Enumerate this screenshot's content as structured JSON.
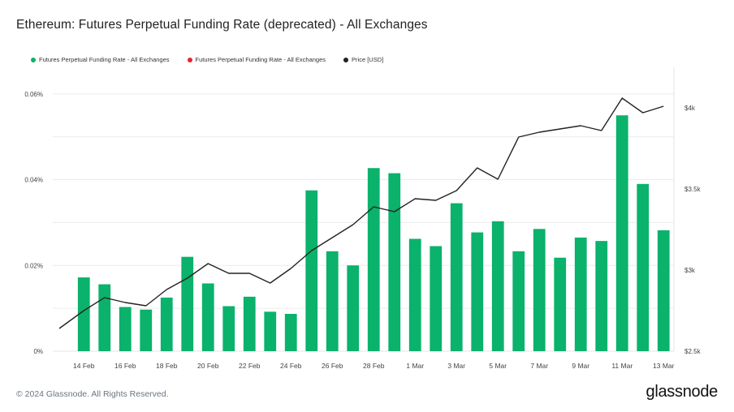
{
  "title": "Ethereum: Futures Perpetual Funding Rate (deprecated) - All Exchanges",
  "legend": [
    {
      "label": "Futures Perpetual Funding Rate - All Exchanges",
      "color": "#0ab26b"
    },
    {
      "label": "Futures Perpetual Funding Rate - All Exchanges",
      "color": "#e8232a"
    },
    {
      "label": "Price [USD]",
      "color": "#222222"
    }
  ],
  "footer": {
    "copyright": "© 2024 Glassnode. All Rights Reserved.",
    "brand": "glassnode"
  },
  "chart_data": {
    "type": "bar+line",
    "title": "Ethereum: Futures Perpetual Funding Rate (deprecated) - All Exchanges",
    "categories": [
      "13 Feb",
      "14 Feb",
      "15 Feb",
      "16 Feb",
      "17 Feb",
      "18 Feb",
      "19 Feb",
      "20 Feb",
      "21 Feb",
      "22 Feb",
      "23 Feb",
      "24 Feb",
      "25 Feb",
      "26 Feb",
      "27 Feb",
      "28 Feb",
      "29 Feb",
      "1 Mar",
      "2 Mar",
      "3 Mar",
      "4 Mar",
      "5 Mar",
      "6 Mar",
      "7 Mar",
      "8 Mar",
      "9 Mar",
      "10 Mar",
      "11 Mar",
      "12 Mar",
      "13 Mar"
    ],
    "x_tick_labels": [
      "14 Feb",
      "16 Feb",
      "18 Feb",
      "20 Feb",
      "22 Feb",
      "24 Feb",
      "26 Feb",
      "28 Feb",
      "1 Mar",
      "3 Mar",
      "5 Mar",
      "7 Mar",
      "9 Mar",
      "11 Mar",
      "13 Mar"
    ],
    "series": [
      {
        "name": "Futures Perpetual Funding Rate - All Exchanges",
        "type": "bar",
        "axis": "left",
        "color": "#0ab26b",
        "unit": "%",
        "values": [
          null,
          0.0172,
          0.0156,
          0.0103,
          0.0097,
          0.0125,
          0.022,
          0.0158,
          0.0105,
          0.0127,
          0.0092,
          0.0087,
          0.0375,
          0.0233,
          0.02,
          0.0427,
          0.0415,
          0.0262,
          0.0245,
          0.0345,
          0.0277,
          0.0303,
          0.0233,
          0.0285,
          0.0218,
          0.0265,
          0.0257,
          0.055,
          0.039,
          0.0282
        ]
      },
      {
        "name": "Price [USD]",
        "type": "line",
        "axis": "right",
        "color": "#222222",
        "values": [
          2640,
          2750,
          2830,
          2800,
          2780,
          2880,
          2950,
          3040,
          2980,
          2980,
          2920,
          3010,
          3120,
          3200,
          3280,
          3390,
          3360,
          3440,
          3430,
          3490,
          3630,
          3560,
          3820,
          3850,
          3870,
          3890,
          3860,
          4060,
          3970,
          4010
        ]
      }
    ],
    "y_left": {
      "ticks": [
        "0%",
        "0.02%",
        "0.04%",
        "0.06%"
      ],
      "tick_values": [
        0,
        0.02,
        0.04,
        0.06
      ],
      "range": [
        0,
        0.0662
      ]
    },
    "y_right": {
      "ticks": [
        "$2.5k",
        "$3k",
        "$3.5k",
        "$4k"
      ],
      "tick_values": [
        2500,
        3000,
        3500,
        4000
      ],
      "range": [
        2500,
        4250
      ]
    },
    "grid": true,
    "legend_position": "top-left"
  }
}
